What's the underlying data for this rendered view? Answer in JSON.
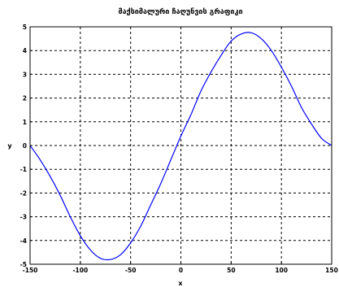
{
  "chart_data": {
    "type": "line",
    "title": "მაქსიმალური ჩაღუნვის გრაფიკი",
    "xlabel": "x",
    "ylabel": "y",
    "xlim": [
      -150,
      150
    ],
    "ylim": [
      -5,
      5
    ],
    "x_ticks": [
      "-150",
      "-100",
      "-50",
      "0",
      "50",
      "100",
      "150"
    ],
    "y_ticks": [
      "5",
      "4",
      "3",
      "2",
      "1",
      "0",
      "-1",
      "-2",
      "-3",
      "-4",
      "-5"
    ],
    "grid": true,
    "series": [
      {
        "color": "#0000ff",
        "x": [
          -150,
          -140,
          -130,
          -120,
          -110,
          -100,
          -90,
          -80,
          -70,
          -60,
          -50,
          -40,
          -30,
          -20,
          -10,
          0,
          10,
          20,
          30,
          40,
          50,
          60,
          70,
          80,
          90,
          100,
          110,
          120,
          130,
          140,
          150
        ],
        "y": [
          0,
          -0.6,
          -1.3,
          -2.1,
          -3.0,
          -3.8,
          -4.4,
          -4.75,
          -4.8,
          -4.6,
          -4.1,
          -3.4,
          -2.5,
          -1.6,
          -0.6,
          0.4,
          1.3,
          2.3,
          3.1,
          3.8,
          4.4,
          4.7,
          4.75,
          4.5,
          4.0,
          3.3,
          2.5,
          1.6,
          0.9,
          0.3,
          0
        ]
      }
    ]
  }
}
